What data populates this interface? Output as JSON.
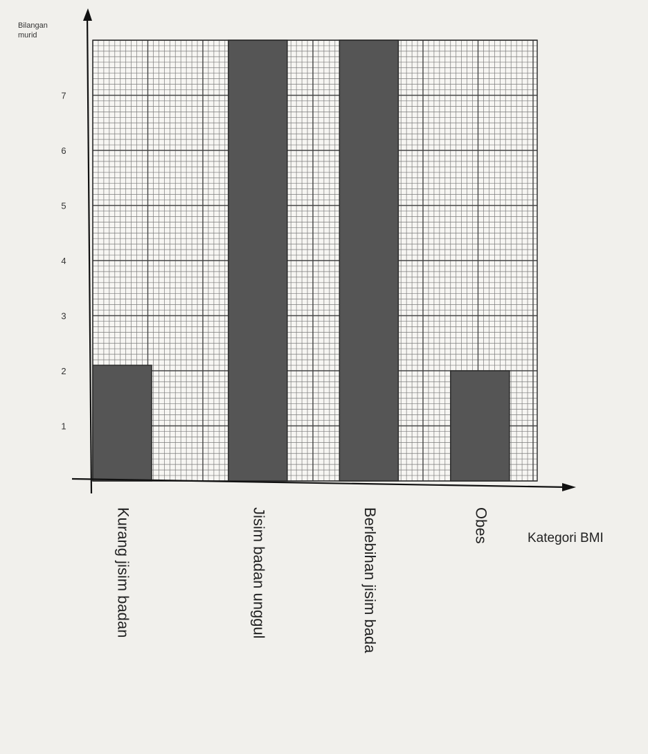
{
  "chart_data": {
    "type": "bar",
    "ylabel_lines": [
      "Bilangan",
      "murid"
    ],
    "xlabel": "Kategori BMI",
    "categories": [
      "Kurang jisim badan",
      "Jisim badan unggul",
      "Berlebihan jisim bada",
      "Obes"
    ],
    "values": [
      2.1,
      8,
      8,
      2
    ],
    "ylim": [
      0,
      8
    ],
    "yticks": [
      1,
      2,
      3,
      4,
      5,
      6,
      7
    ],
    "grid": true,
    "colors": {
      "bar": "#555555",
      "grid": "#7a7a7a",
      "axis": "#111111"
    }
  }
}
